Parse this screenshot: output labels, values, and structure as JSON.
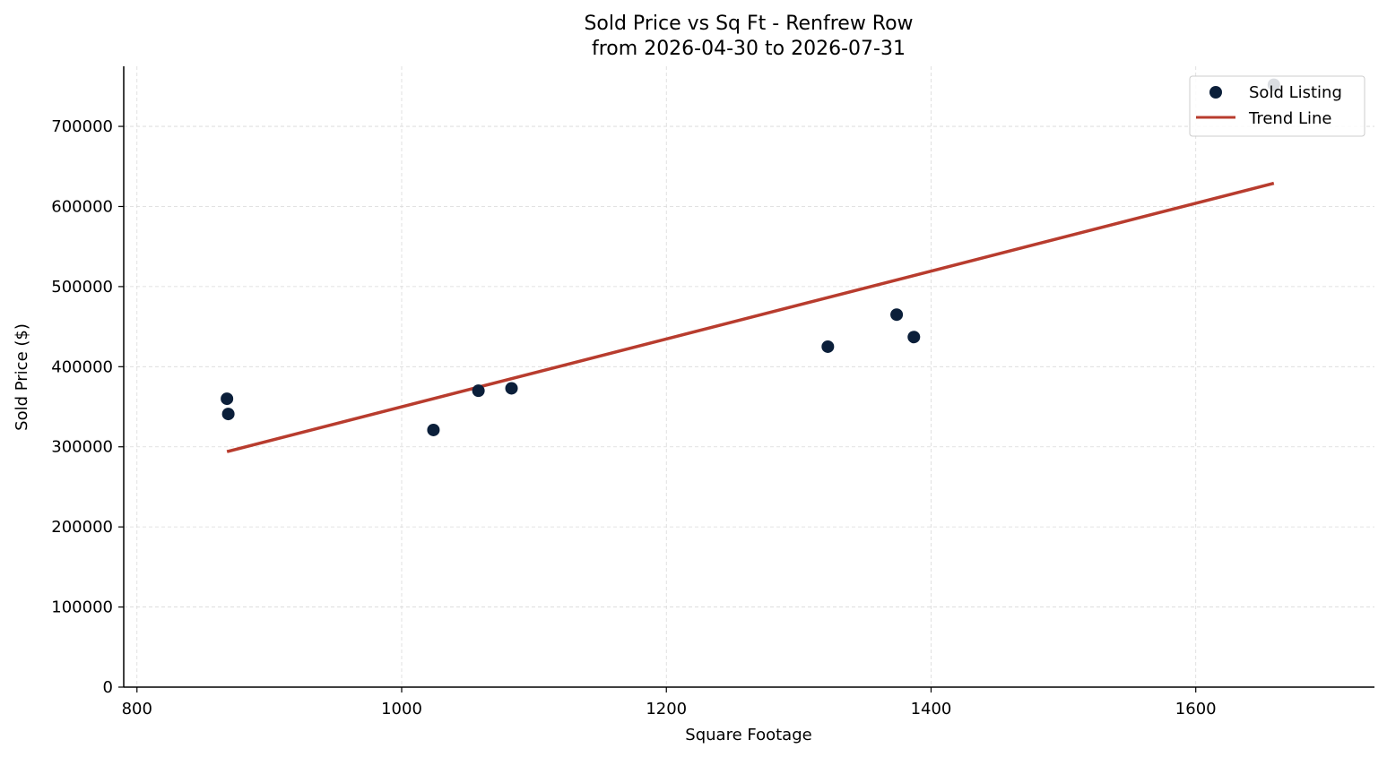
{
  "chart_data": {
    "type": "scatter",
    "title": "Sold Price vs Sq Ft - Renfrew Row",
    "subtitle": "from 2026-04-30 to 2026-07-31",
    "xlabel": "Square Footage",
    "ylabel": "Sold Price ($)",
    "xlim": [
      790,
      1735
    ],
    "ylim": [
      0,
      775000
    ],
    "xticks": [
      800,
      1000,
      1200,
      1400,
      1600
    ],
    "yticks": [
      0,
      100000,
      200000,
      300000,
      400000,
      500000,
      600000,
      700000
    ],
    "grid": true,
    "legend_position": "top-right",
    "colors": {
      "points": "#0b1f3a",
      "trend": "#b83c2e",
      "grid": "#d9d9d9"
    },
    "series": [
      {
        "name": "Sold Listing",
        "type": "scatter",
        "x": [
          868,
          869,
          1024,
          1058,
          1083,
          1322,
          1374,
          1387,
          1659
        ],
        "y": [
          360000,
          341000,
          321000,
          370000,
          373000,
          425000,
          465000,
          437000,
          752000
        ]
      },
      {
        "name": "Trend Line",
        "type": "line",
        "x": [
          868,
          1659
        ],
        "y": [
          294000,
          629000
        ]
      }
    ]
  }
}
